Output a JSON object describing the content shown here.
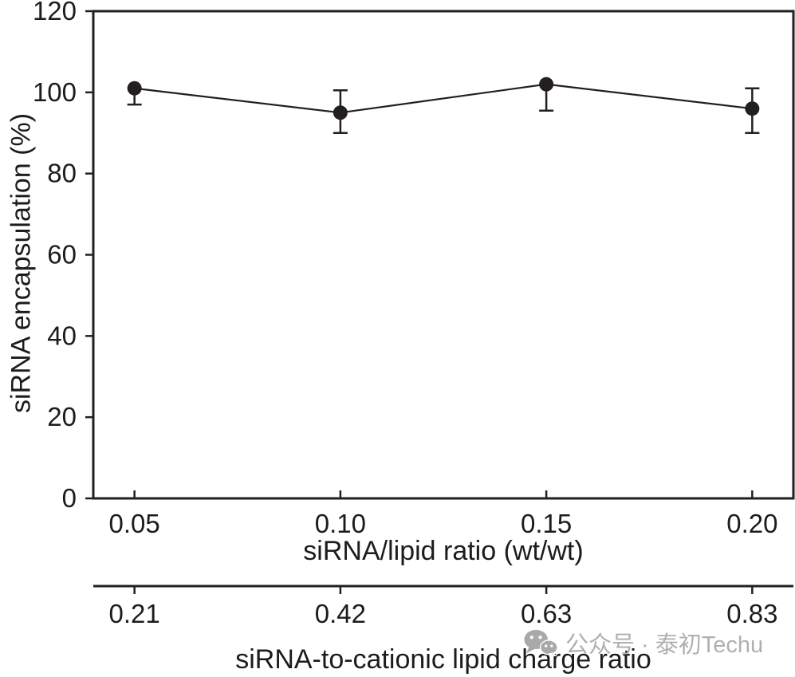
{
  "chart_data": {
    "type": "line",
    "x": [
      0.05,
      0.1,
      0.15,
      0.2
    ],
    "x_tick_labels": [
      "0.05",
      "0.10",
      "0.15",
      "0.20"
    ],
    "y_ticks": [
      0,
      20,
      40,
      60,
      80,
      100,
      120
    ],
    "xlim": [
      0.04,
      0.21
    ],
    "ylim": [
      0,
      120
    ],
    "grid": false,
    "legend": "none",
    "marker": "filled-circle",
    "line_color": "#231f20",
    "text_color": "#1c1c1c",
    "xlabel": "siRNA/lipid ratio (wt/wt)",
    "ylabel": "siRNA encapsulation (%)",
    "series": [
      {
        "name": "siRNA encapsulation",
        "values": [
          101,
          95,
          102,
          96
        ],
        "err_upper": [
          0,
          5.5,
          0,
          5
        ],
        "err_lower": [
          4,
          5,
          6.5,
          6
        ]
      }
    ],
    "secondary_x_axis": {
      "label": "siRNA-to-cationic lipid charge ratio",
      "tick_labels": [
        "0.21",
        "0.42",
        "0.63",
        "0.83"
      ]
    }
  },
  "watermark": {
    "icon": "wechat-icon",
    "text": "公众号 · 泰初Techu",
    "color": "#b0b0b0"
  }
}
